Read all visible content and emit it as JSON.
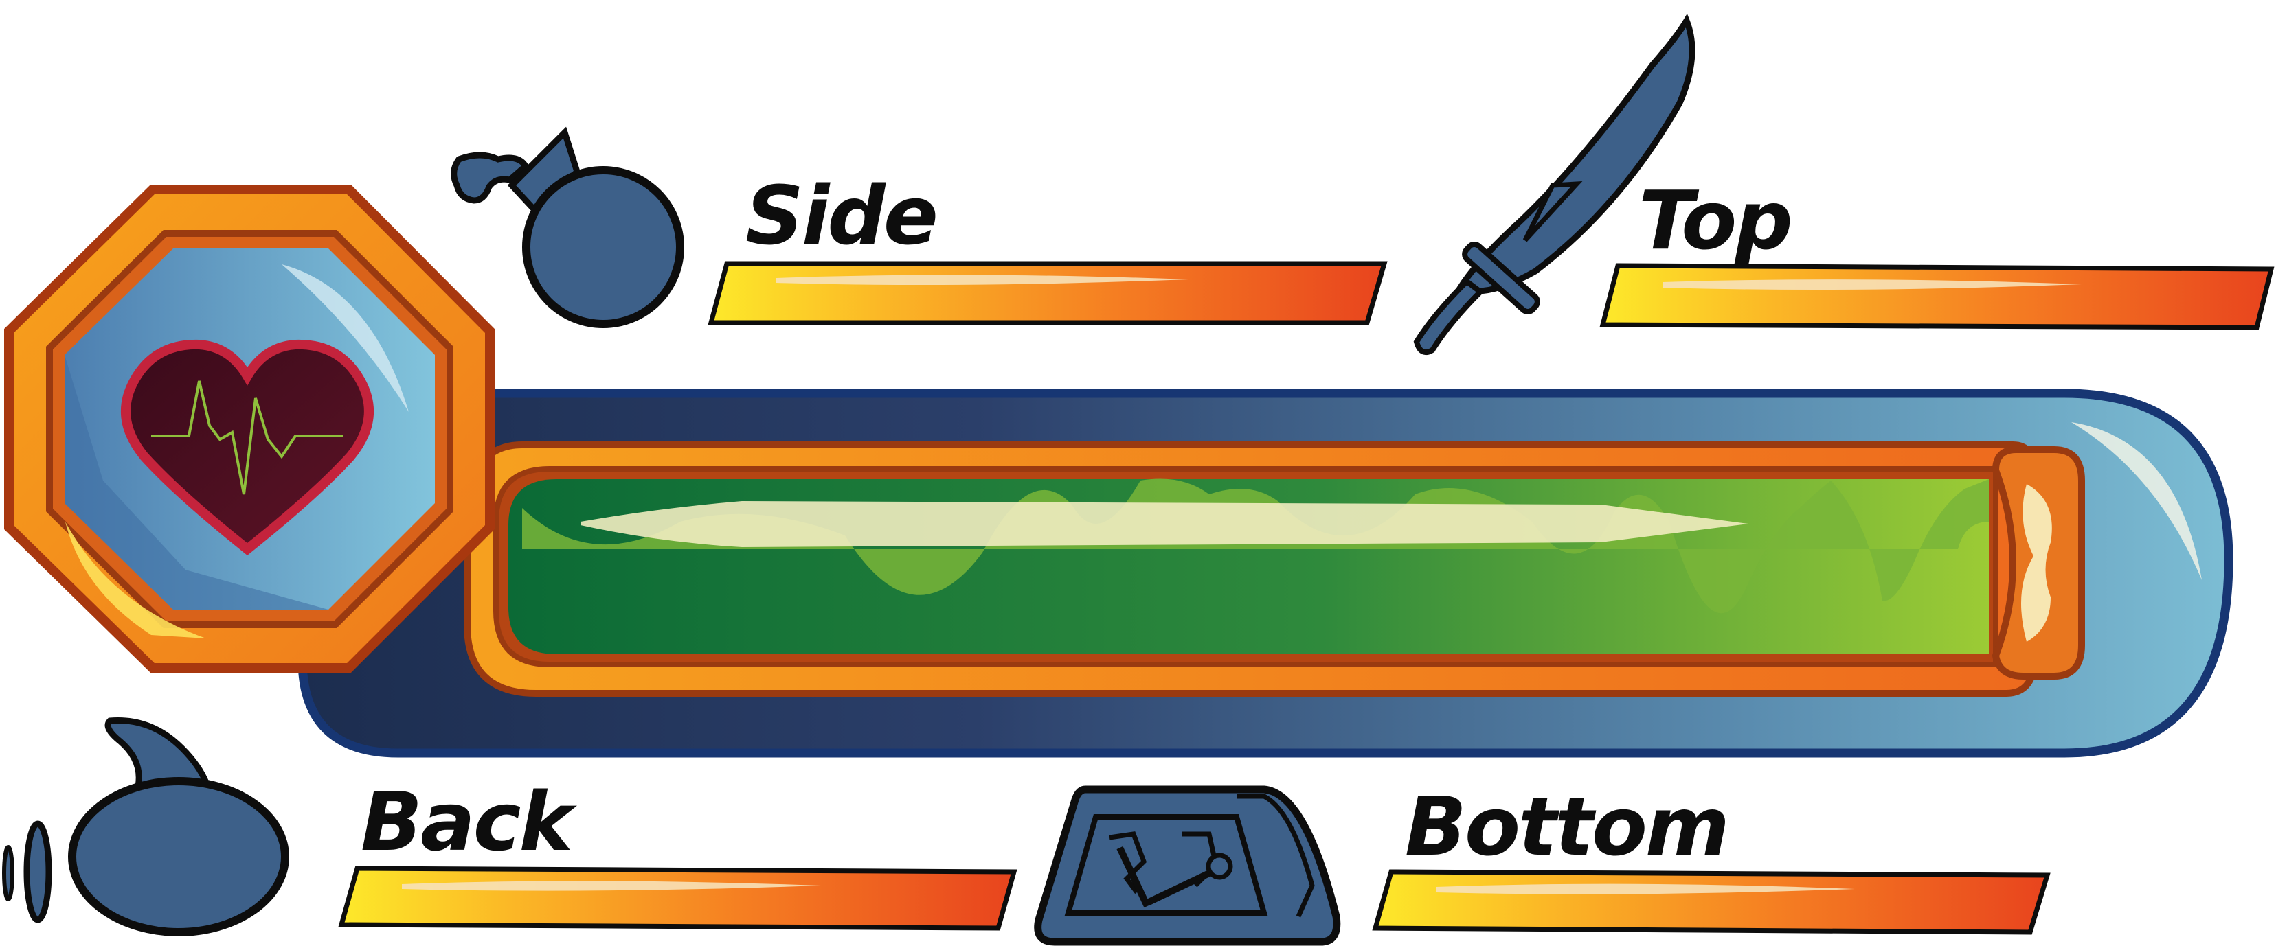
{
  "hud": {
    "health_icon": "heart-ecg-icon",
    "health_fraction": 1.0,
    "stats": [
      {
        "key": "side",
        "label": "Side",
        "icon": "bomb-icon",
        "fraction": 1.0
      },
      {
        "key": "top",
        "label": "Top",
        "icon": "sword-icon",
        "fraction": 1.0
      },
      {
        "key": "back",
        "label": "Back",
        "icon": "round-bomb-icon",
        "fraction": 1.0
      },
      {
        "key": "bottom",
        "label": "Bottom",
        "icon": "trap-panel-icon",
        "fraction": 1.0
      }
    ]
  },
  "colors": {
    "outline": "#0d0d0d",
    "steel_blue": "#3d6089",
    "orange": "#f5891e",
    "bar_start": "#fde92a",
    "bar_end": "#e8441e",
    "health_green": "#1d7a3a",
    "health_lime": "#8ec93a",
    "heart": "#4a0d1f",
    "heart_rim": "#c4233c",
    "gem_blue": "#6fb4d2"
  }
}
